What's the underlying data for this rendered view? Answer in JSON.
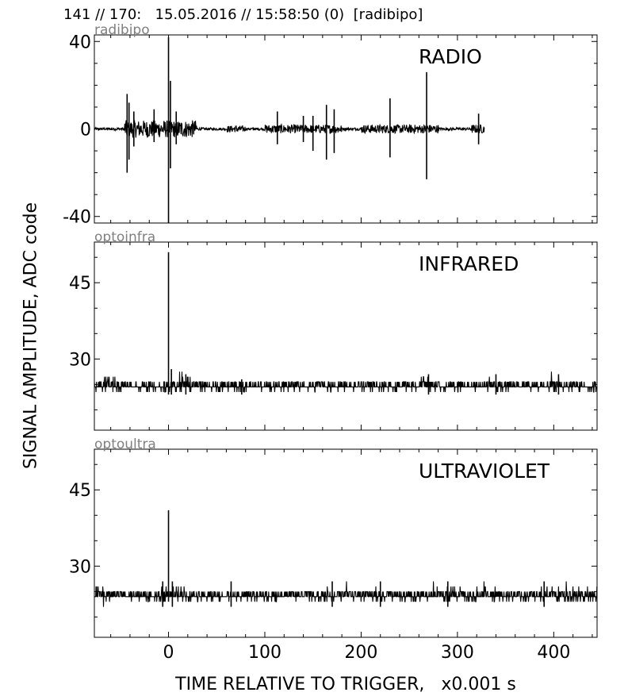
{
  "header": "141 // 170:   15.05.2016 // 15:58:50 (0)  [radibipo]",
  "ylabel": "SIGNAL AMPLITUDE,  ADC code",
  "xlabel": "TIME RELATIVE TO TRIGGER,   x0.001 s",
  "chart_data": [
    {
      "type": "line",
      "channel": "radibipo",
      "title": "RADIO",
      "xlim": [
        -77,
        445
      ],
      "ylim": [
        -43,
        43
      ],
      "x_ticks": [
        0,
        100,
        200,
        300,
        400
      ],
      "y_ticks": [
        40,
        0,
        -40
      ],
      "y_tick_labels": [
        "40",
        "0",
        "-40"
      ],
      "baseline": 0,
      "noise": 0.6,
      "signal_end": 328,
      "spikes": [
        {
          "x": -43,
          "high": 16,
          "low": -20
        },
        {
          "x": -41,
          "high": 12,
          "low": -14
        },
        {
          "x": -36,
          "high": 8,
          "low": -8
        },
        {
          "x": -15,
          "high": 9,
          "low": -6
        },
        {
          "x": 0,
          "high": 42,
          "low": -43
        },
        {
          "x": 2,
          "high": 22,
          "low": -18
        },
        {
          "x": 8,
          "high": 8,
          "low": -7
        },
        {
          "x": 113,
          "high": 8,
          "low": -7
        },
        {
          "x": 140,
          "high": 6,
          "low": -6
        },
        {
          "x": 150,
          "high": 6,
          "low": -10
        },
        {
          "x": 164,
          "high": 11,
          "low": -14
        },
        {
          "x": 172,
          "high": 9,
          "low": -11
        },
        {
          "x": 230,
          "high": 14,
          "low": -13
        },
        {
          "x": 268,
          "high": 26,
          "low": -23
        },
        {
          "x": 322,
          "high": 7,
          "low": -7
        }
      ],
      "bursts": [
        {
          "from": -46,
          "to": 30,
          "amp": 4
        },
        {
          "from": 60,
          "to": 80,
          "amp": 1.5
        },
        {
          "from": 100,
          "to": 180,
          "amp": 2
        },
        {
          "from": 200,
          "to": 280,
          "amp": 2
        },
        {
          "from": 315,
          "to": 328,
          "amp": 2
        }
      ]
    },
    {
      "type": "line",
      "channel": "optoinfra",
      "title": "INFRARED",
      "xlim": [
        -77,
        445
      ],
      "ylim": [
        16,
        53
      ],
      "x_ticks": [
        0,
        100,
        200,
        300,
        400
      ],
      "y_ticks": [
        45,
        30
      ],
      "y_tick_labels": [
        "45",
        "30"
      ],
      "baseline": 24.5,
      "noise": 0.8,
      "signal_end": 445,
      "spikes": [
        {
          "x": 0,
          "high": 51,
          "low": 23
        },
        {
          "x": 3,
          "high": 28,
          "low": 23
        },
        {
          "x": 18,
          "high": 27,
          "low": 23
        },
        {
          "x": 76,
          "high": 26,
          "low": 23
        },
        {
          "x": 270,
          "high": 27,
          "low": 23
        },
        {
          "x": 340,
          "high": 27,
          "low": 23
        },
        {
          "x": 405,
          "high": 27,
          "low": 23
        }
      ],
      "bursts": [
        {
          "from": -77,
          "to": -50,
          "amp": 1.5
        },
        {
          "from": 10,
          "to": 30,
          "amp": 2
        },
        {
          "from": 260,
          "to": 280,
          "amp": 1.5
        },
        {
          "from": 330,
          "to": 345,
          "amp": 1.5
        },
        {
          "from": 395,
          "to": 410,
          "amp": 1.5
        }
      ]
    },
    {
      "type": "line",
      "channel": "optoultra",
      "title": "ULTRAVIOLET",
      "xlim": [
        -77,
        445
      ],
      "ylim": [
        16,
        53
      ],
      "x_ticks": [
        0,
        100,
        200,
        300,
        400
      ],
      "y_ticks": [
        45,
        30
      ],
      "y_tick_labels": [
        "45",
        "30"
      ],
      "baseline": 24,
      "noise": 0.8,
      "signal_end": 445,
      "spikes": [
        {
          "x": 0,
          "high": 41,
          "low": 23
        },
        {
          "x": -6,
          "high": 27,
          "low": 22
        },
        {
          "x": 4,
          "high": 27,
          "low": 22
        },
        {
          "x": 65,
          "high": 27,
          "low": 22
        },
        {
          "x": 170,
          "high": 27,
          "low": 22
        },
        {
          "x": 220,
          "high": 27,
          "low": 22
        },
        {
          "x": 290,
          "high": 27,
          "low": 22
        },
        {
          "x": 390,
          "high": 27,
          "low": 22
        }
      ],
      "bursts": [
        {
          "from": -77,
          "to": -45,
          "amp": 1.2
        },
        {
          "from": -12,
          "to": 20,
          "amp": 2
        },
        {
          "from": 160,
          "to": 230,
          "amp": 1.5
        },
        {
          "from": 260,
          "to": 345,
          "amp": 1.8
        },
        {
          "from": 380,
          "to": 445,
          "amp": 1.5
        }
      ]
    }
  ]
}
